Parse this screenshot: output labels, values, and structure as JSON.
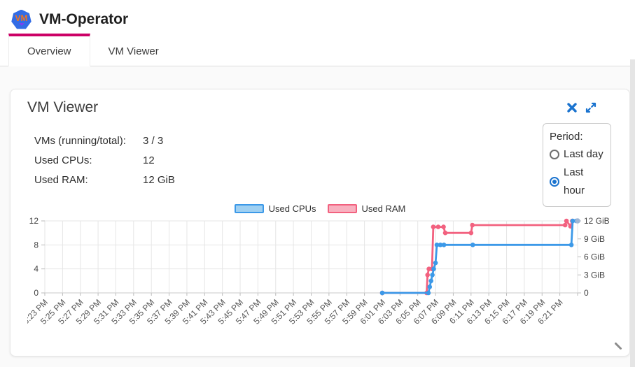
{
  "colors": {
    "tab_accent": "#cc0066",
    "icon_blue": "#1a73cf",
    "cpu_line": "#3c99e8",
    "cpu_legend_fill": "#9fd0f2",
    "ram_line": "#f2617f",
    "ram_legend_fill": "#f8b1c0",
    "grid": "#e6e6e6"
  },
  "header": {
    "logo_text": "VM",
    "title": "VM-Operator"
  },
  "tabs": [
    {
      "label": "Overview",
      "active": true
    },
    {
      "label": "VM Viewer",
      "active": false
    }
  ],
  "card": {
    "title": "VM Viewer",
    "stats": [
      {
        "label": "VMs (running/total):",
        "value": "3 / 3"
      },
      {
        "label": "Used CPUs:",
        "value": "12"
      },
      {
        "label": "Used RAM:",
        "value": "12 GiB"
      }
    ],
    "period": {
      "label": "Period:",
      "options": [
        {
          "label": "Last day",
          "selected": false
        },
        {
          "label": "Last hour",
          "selected": true
        }
      ]
    }
  },
  "icons": {
    "close": "bold x cross",
    "expand": "double diagonal arrows",
    "resize_grip": "diagonal drag handle",
    "logo": "blue heptagon with VM"
  },
  "chart_data": {
    "type": "line",
    "subtype": "step time series, two y-axes",
    "title": "",
    "legend_position": "top-center",
    "grid": true,
    "legend": [
      {
        "name": "Used CPUs",
        "line_color": "#3c99e8",
        "fill_color": "#9fd0f2"
      },
      {
        "name": "Used RAM",
        "line_color": "#f2617f",
        "fill_color": "#f8b1c0"
      }
    ],
    "x_categories": [
      "5:23 PM",
      "5:25 PM",
      "5:27 PM",
      "5:29 PM",
      "5:31 PM",
      "5:33 PM",
      "5:35 PM",
      "5:37 PM",
      "5:39 PM",
      "5:41 PM",
      "5:43 PM",
      "5:45 PM",
      "5:47 PM",
      "5:49 PM",
      "5:51 PM",
      "5:53 PM",
      "5:55 PM",
      "5:57 PM",
      "5:59 PM",
      "6:01 PM",
      "6:03 PM",
      "6:05 PM",
      "6:07 PM",
      "6:09 PM",
      "6:11 PM",
      "6:13 PM",
      "6:15 PM",
      "6:17 PM",
      "6:19 PM",
      "6:21 PM"
    ],
    "x_tick_interval_minutes": 2,
    "x_unit": "minutes after 5:23 PM",
    "left_axis": {
      "ticks": [
        0,
        4,
        8,
        12
      ],
      "range": [
        0,
        12
      ]
    },
    "right_axis": {
      "ticks": [
        0,
        3,
        6,
        9,
        12
      ],
      "tick_labels": [
        "0",
        "3 GiB",
        "6 GiB",
        "9 GiB",
        "12 GiB"
      ],
      "range": [
        0,
        12
      ]
    },
    "series": [
      {
        "name": "Used CPUs",
        "axis": "left",
        "color": "#3c99e8",
        "end_marker_color": "#9fb6d4",
        "points": [
          [
            38,
            0
          ],
          [
            43.2,
            0
          ],
          [
            43.35,
            1
          ],
          [
            43.5,
            2
          ],
          [
            43.65,
            3
          ],
          [
            43.8,
            4
          ],
          [
            44,
            5
          ],
          [
            44.15,
            8
          ],
          [
            44.55,
            8
          ],
          [
            44.95,
            8
          ],
          [
            48.2,
            8
          ],
          [
            59.3,
            8
          ],
          [
            59.45,
            12
          ],
          [
            59.85,
            12
          ],
          [
            60,
            12
          ]
        ]
      },
      {
        "name": "Used RAM",
        "axis": "right",
        "unit": "GiB",
        "color": "#f2617f",
        "points": [
          [
            38,
            0
          ],
          [
            43,
            0
          ],
          [
            43.1,
            3
          ],
          [
            43.25,
            4
          ],
          [
            43.6,
            4
          ],
          [
            43.75,
            11
          ],
          [
            44.3,
            11
          ],
          [
            44.9,
            11
          ],
          [
            45.1,
            10
          ],
          [
            48,
            10
          ],
          [
            48.15,
            11.3
          ],
          [
            58.6,
            11.3
          ],
          [
            58.75,
            12
          ],
          [
            59.2,
            11.1
          ],
          [
            59.4,
            12
          ],
          [
            59.9,
            12
          ]
        ]
      }
    ]
  }
}
